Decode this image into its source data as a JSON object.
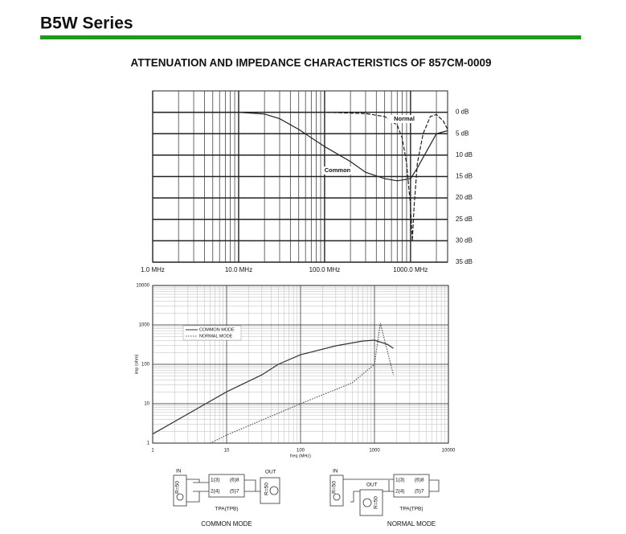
{
  "header": {
    "title": "B5W Series"
  },
  "title": "ATTENUATION AND IMPEDANCE CHARACTERISTICS OF 857CM-0009",
  "chart_data": [
    {
      "type": "line",
      "log_x": true,
      "minor_grid": true,
      "y_inverted": true,
      "y_axis_side": "right",
      "xlim": [
        1,
        2700
      ],
      "ylim": [
        -5,
        35
      ],
      "xticks": [
        {
          "value": 1,
          "label": "1.0  MHz"
        },
        {
          "value": 10,
          "label": "10.0  MHz"
        },
        {
          "value": 100,
          "label": "100.0  MHz"
        },
        {
          "value": 1000,
          "label": "1000.0  MHz"
        }
      ],
      "yticks": [
        {
          "value": 0,
          "label": "0 dB"
        },
        {
          "value": 5,
          "label": "5 dB"
        },
        {
          "value": 10,
          "label": "10 dB"
        },
        {
          "value": 15,
          "label": "15 dB"
        },
        {
          "value": 20,
          "label": "20 dB"
        },
        {
          "value": 25,
          "label": "25 dB"
        },
        {
          "value": 30,
          "label": "30 dB"
        },
        {
          "value": 35,
          "label": "35 dB"
        }
      ],
      "series": [
        {
          "name": "Common",
          "color": "#222222",
          "style": "solid",
          "x": [
            1,
            10,
            20,
            30,
            50,
            100,
            200,
            300,
            500,
            700,
            1000,
            1200,
            1500,
            2000,
            2700
          ],
          "values": [
            0,
            0,
            0.4,
            1.5,
            4,
            8,
            11.5,
            14,
            15.5,
            16,
            15.5,
            13,
            9.5,
            5,
            4.3
          ]
        },
        {
          "name": "Normal",
          "color": "#222222",
          "style": "dashed",
          "x": [
            1,
            100,
            300,
            500,
            700,
            800,
            900,
            1000,
            1050,
            1100,
            1200,
            1400,
            1700,
            2000,
            2400,
            2700
          ],
          "values": [
            0,
            0,
            0.3,
            1,
            3,
            6,
            12,
            22,
            30,
            22,
            12,
            5,
            1,
            0.5,
            2,
            4
          ]
        }
      ]
    },
    {
      "type": "line",
      "log_x": true,
      "log_y": true,
      "minor_grid": true,
      "legend": "upper-left",
      "x_label": "freq (MHz)",
      "y_label": "imp (ohm)",
      "xlim": [
        1,
        10000
      ],
      "ylim": [
        1,
        10000
      ],
      "xticks": [
        1,
        10,
        100,
        1000,
        10000
      ],
      "yticks": [
        1,
        10,
        100,
        1000,
        10000
      ],
      "series": [
        {
          "name": "COMMON MODE",
          "color": "#333333",
          "style": "solid",
          "x": [
            1,
            10,
            30,
            50,
            100,
            300,
            700,
            1000,
            1500,
            1800
          ],
          "values": [
            1.7,
            20,
            54,
            100,
            175,
            295,
            390,
            410,
            320,
            255
          ]
        },
        {
          "name": "NORMAL MODE",
          "color": "#555555",
          "style": "dotted",
          "x": [
            6,
            10,
            100,
            500,
            1000,
            1200,
            1800
          ],
          "values": [
            1,
            1.6,
            10,
            34,
            100,
            1100,
            54
          ]
        }
      ]
    }
  ],
  "diagrams": [
    {
      "in": "IN",
      "r_in": "R=50",
      "pin1": "1(3)",
      "pin8": "(6)8",
      "pin2": "2(4)",
      "pin7": "(5)7",
      "part": "TPA(TPB)",
      "out": "OUT",
      "r_out": "R=50",
      "caption": "COMMON MODE"
    },
    {
      "in": "IN",
      "r_in": "R=50",
      "pin1": "1(3)",
      "pin8": "(6)8",
      "pin2": "2(4)",
      "pin7": "(5)7",
      "part": "TPA(TPB)",
      "out": "OUT",
      "r_out": "R=50",
      "caption": "NORMAL MODE"
    }
  ]
}
